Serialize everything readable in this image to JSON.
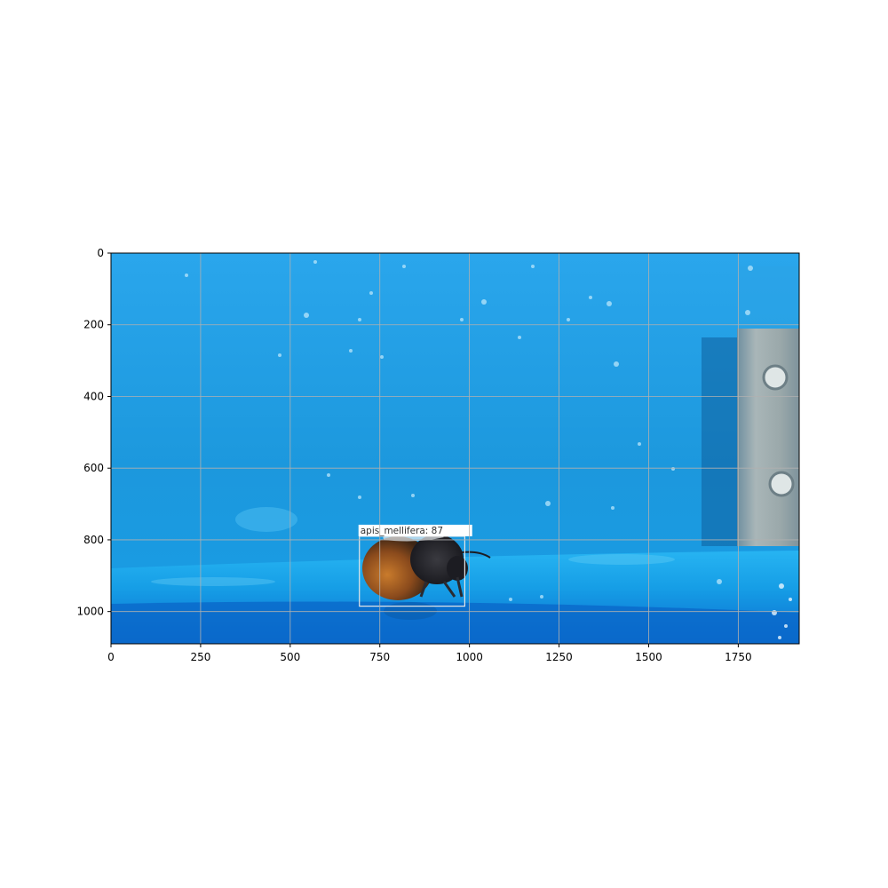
{
  "chart_data": {
    "type": "image",
    "image_width": 1920,
    "image_height": 1090,
    "xlim": [
      0,
      1920
    ],
    "ylim": [
      1090,
      0
    ],
    "x_ticks": [
      0,
      250,
      500,
      750,
      1000,
      1250,
      1500,
      1750
    ],
    "y_ticks": [
      0,
      200,
      400,
      600,
      800,
      1000
    ],
    "grid": true,
    "detections": [
      {
        "label": "apis_mellifera: 87",
        "x_min": 693,
        "y_min": 790,
        "x_max": 987,
        "y_max": 985
      }
    ]
  },
  "colors": {
    "background_blue": "#1a9be0",
    "floor_blue": "#0b78d4",
    "grid": "#b0b0b0",
    "bbox": "#e6e6e6"
  }
}
